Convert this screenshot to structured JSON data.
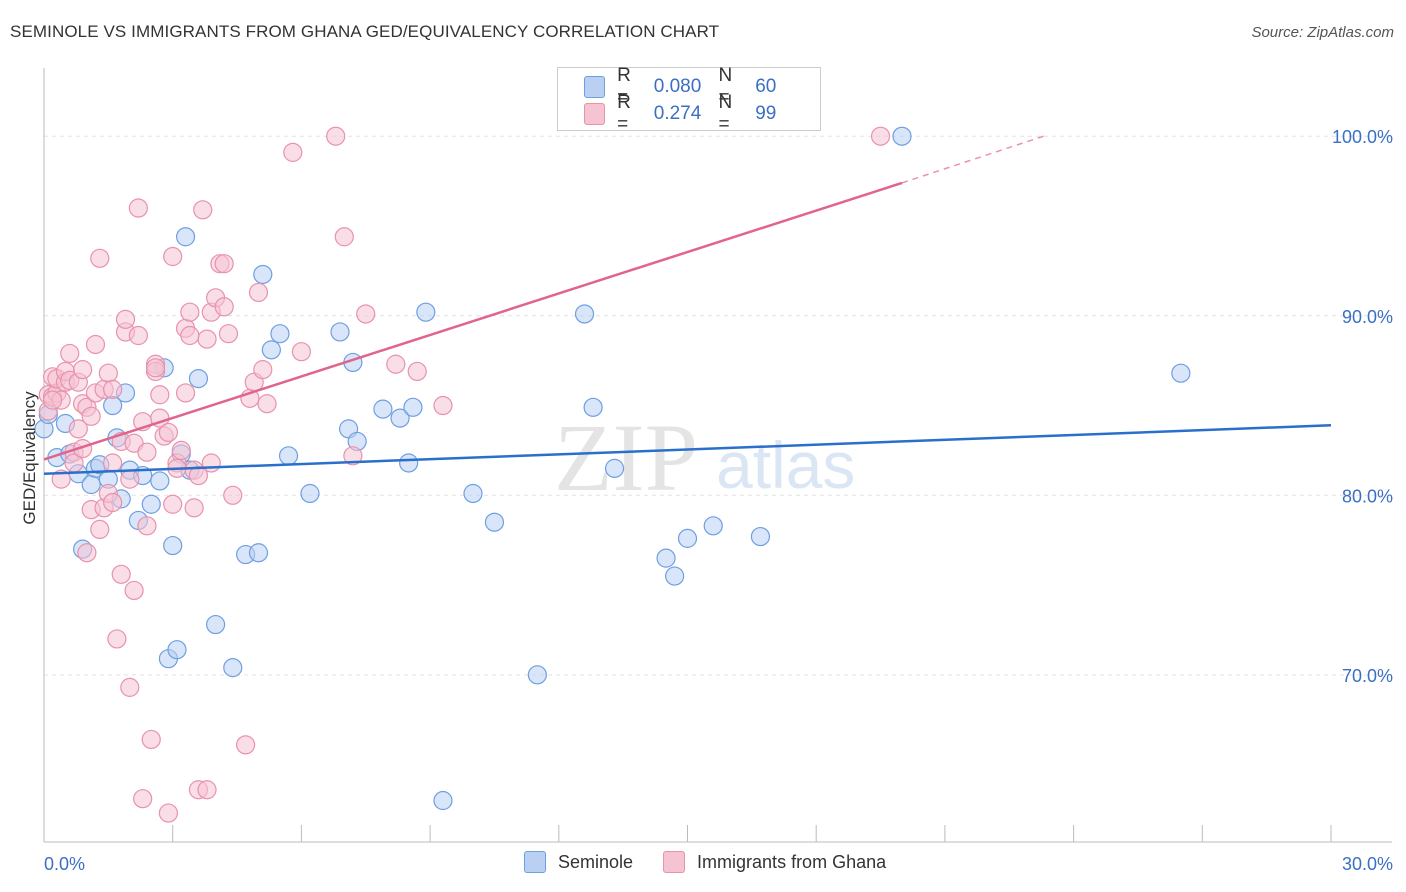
{
  "title": "SEMINOLE VS IMMIGRANTS FROM GHANA GED/EQUIVALENCY CORRELATION CHART",
  "source": "Source: ZipAtlas.com",
  "watermark": {
    "zip": "ZIP",
    "atlas": "atlas"
  },
  "legend": {
    "r_label": "R =",
    "n_label": "N =",
    "series": [
      {
        "name": "Seminole",
        "r": "0.080",
        "n": "60"
      },
      {
        "name": "Immigrants from Ghana",
        "r": "0.274",
        "n": "99"
      }
    ]
  },
  "chart_data": {
    "type": "scatter",
    "title": "SEMINOLE VS IMMIGRANTS FROM GHANA GED/EQUIVALENCY CORRELATION CHART",
    "xlabel": "",
    "ylabel": "GED/Equivalency",
    "xlim": [
      0,
      30
    ],
    "ylim": [
      60.8,
      103.8
    ],
    "x_tick_labels": [
      {
        "value": 0,
        "label": "0.0%"
      },
      {
        "value": 30,
        "label": "30.0%"
      }
    ],
    "y_tick_labels": [
      {
        "value": 70,
        "label": "70.0%"
      },
      {
        "value": 80,
        "label": "80.0%"
      },
      {
        "value": 90,
        "label": "90.0%"
      },
      {
        "value": 100,
        "label": "100.0%"
      }
    ],
    "series": [
      {
        "name": "Seminole",
        "color": "#6f9fe0",
        "fill": "#b9d0f2",
        "line_color": "#2a6fcc",
        "trend": {
          "x0": 0,
          "y0": 81.2,
          "x1": 30,
          "y1": 83.9
        },
        "points": [
          [
            0.0,
            83.7
          ],
          [
            0.1,
            84.5
          ],
          [
            0.3,
            82.1
          ],
          [
            0.5,
            84.0
          ],
          [
            0.6,
            82.3
          ],
          [
            0.8,
            81.2
          ],
          [
            0.9,
            77.0
          ],
          [
            1.1,
            80.6
          ],
          [
            1.2,
            81.5
          ],
          [
            1.3,
            81.7
          ],
          [
            1.5,
            80.9
          ],
          [
            1.6,
            85.0
          ],
          [
            1.7,
            83.2
          ],
          [
            1.8,
            79.8
          ],
          [
            1.9,
            85.7
          ],
          [
            2.0,
            81.4
          ],
          [
            2.2,
            78.6
          ],
          [
            2.3,
            81.1
          ],
          [
            2.5,
            79.5
          ],
          [
            2.7,
            80.8
          ],
          [
            2.8,
            87.1
          ],
          [
            2.9,
            70.9
          ],
          [
            3.0,
            77.2
          ],
          [
            3.1,
            71.4
          ],
          [
            3.2,
            82.3
          ],
          [
            3.3,
            94.4
          ],
          [
            3.4,
            81.4
          ],
          [
            3.6,
            86.5
          ],
          [
            4.0,
            72.8
          ],
          [
            4.4,
            70.4
          ],
          [
            4.7,
            76.7
          ],
          [
            5.0,
            76.8
          ],
          [
            5.1,
            92.3
          ],
          [
            5.3,
            88.1
          ],
          [
            5.5,
            89.0
          ],
          [
            5.7,
            82.2
          ],
          [
            6.2,
            80.1
          ],
          [
            6.9,
            89.1
          ],
          [
            7.1,
            83.7
          ],
          [
            7.2,
            87.4
          ],
          [
            7.3,
            83.0
          ],
          [
            7.9,
            84.8
          ],
          [
            8.3,
            84.3
          ],
          [
            8.5,
            81.8
          ],
          [
            8.6,
            84.9
          ],
          [
            8.9,
            90.2
          ],
          [
            9.3,
            63.0
          ],
          [
            10.0,
            80.1
          ],
          [
            10.5,
            78.5
          ],
          [
            11.5,
            70.0
          ],
          [
            12.6,
            90.1
          ],
          [
            12.8,
            84.9
          ],
          [
            13.3,
            81.5
          ],
          [
            14.5,
            76.5
          ],
          [
            14.7,
            75.5
          ],
          [
            15.0,
            77.6
          ],
          [
            15.6,
            78.3
          ],
          [
            16.7,
            77.7
          ],
          [
            20.0,
            100.0
          ],
          [
            26.5,
            86.8
          ]
        ]
      },
      {
        "name": "Immigrants from Ghana",
        "color": "#e892ac",
        "fill": "#f6c3d3",
        "line_color": "#e0648e",
        "trend": {
          "x0": 0,
          "y0": 82.0,
          "x1": 20.0,
          "y1": 97.4
        },
        "trend_dashed_to": {
          "x": 23.3,
          "y": 100.0
        },
        "points": [
          [
            0.1,
            85.6
          ],
          [
            0.1,
            84.7
          ],
          [
            0.2,
            86.6
          ],
          [
            0.2,
            85.5
          ],
          [
            0.3,
            85.7
          ],
          [
            0.3,
            86.5
          ],
          [
            0.4,
            80.9
          ],
          [
            0.4,
            85.3
          ],
          [
            0.5,
            86.3
          ],
          [
            0.5,
            86.9
          ],
          [
            0.6,
            86.4
          ],
          [
            0.6,
            87.9
          ],
          [
            0.7,
            82.4
          ],
          [
            0.7,
            81.8
          ],
          [
            0.8,
            83.7
          ],
          [
            0.8,
            86.3
          ],
          [
            0.9,
            87.0
          ],
          [
            0.9,
            85.1
          ],
          [
            1.0,
            84.9
          ],
          [
            1.0,
            76.8
          ],
          [
            1.1,
            79.2
          ],
          [
            1.1,
            84.4
          ],
          [
            1.2,
            88.4
          ],
          [
            1.2,
            85.7
          ],
          [
            1.3,
            93.2
          ],
          [
            1.3,
            78.1
          ],
          [
            1.4,
            79.3
          ],
          [
            1.4,
            85.9
          ],
          [
            1.5,
            86.8
          ],
          [
            1.5,
            80.1
          ],
          [
            1.6,
            81.8
          ],
          [
            1.6,
            79.6
          ],
          [
            1.7,
            72.0
          ],
          [
            1.8,
            75.6
          ],
          [
            1.8,
            83.0
          ],
          [
            1.9,
            89.1
          ],
          [
            1.9,
            89.8
          ],
          [
            2.0,
            80.9
          ],
          [
            2.0,
            69.3
          ],
          [
            2.1,
            74.7
          ],
          [
            2.1,
            82.9
          ],
          [
            2.2,
            88.9
          ],
          [
            2.2,
            96.0
          ],
          [
            2.3,
            63.1
          ],
          [
            2.3,
            84.1
          ],
          [
            2.4,
            78.3
          ],
          [
            2.4,
            82.4
          ],
          [
            2.5,
            66.4
          ],
          [
            2.6,
            87.3
          ],
          [
            2.6,
            86.9
          ],
          [
            2.7,
            85.6
          ],
          [
            2.7,
            84.3
          ],
          [
            2.8,
            83.3
          ],
          [
            2.9,
            62.3
          ],
          [
            2.9,
            83.5
          ],
          [
            3.0,
            79.5
          ],
          [
            3.0,
            93.3
          ],
          [
            3.1,
            81.8
          ],
          [
            3.1,
            81.5
          ],
          [
            3.2,
            82.5
          ],
          [
            3.3,
            85.7
          ],
          [
            3.3,
            89.3
          ],
          [
            3.4,
            90.2
          ],
          [
            3.5,
            79.3
          ],
          [
            3.5,
            81.4
          ],
          [
            3.6,
            63.6
          ],
          [
            3.6,
            81.1
          ],
          [
            3.7,
            95.9
          ],
          [
            3.8,
            63.6
          ],
          [
            3.8,
            88.7
          ],
          [
            3.9,
            81.8
          ],
          [
            3.9,
            90.2
          ],
          [
            4.0,
            91.0
          ],
          [
            4.1,
            92.9
          ],
          [
            4.2,
            90.5
          ],
          [
            4.3,
            89.0
          ],
          [
            4.4,
            80.0
          ],
          [
            4.7,
            66.1
          ],
          [
            4.8,
            85.4
          ],
          [
            4.9,
            86.3
          ],
          [
            5.0,
            91.3
          ],
          [
            5.1,
            87.0
          ],
          [
            5.2,
            85.1
          ],
          [
            5.8,
            99.1
          ],
          [
            6.0,
            88.0
          ],
          [
            6.8,
            100.0
          ],
          [
            7.0,
            94.4
          ],
          [
            7.2,
            82.2
          ],
          [
            7.5,
            90.1
          ],
          [
            8.2,
            87.3
          ],
          [
            8.7,
            86.9
          ],
          [
            9.3,
            85.0
          ],
          [
            19.5,
            100.0
          ],
          [
            4.2,
            92.9
          ],
          [
            0.2,
            85.3
          ],
          [
            3.4,
            88.9
          ],
          [
            2.6,
            87.1
          ],
          [
            1.6,
            85.9
          ],
          [
            0.9,
            82.6
          ]
        ]
      }
    ],
    "grid": true,
    "legend_position": "top-center"
  }
}
